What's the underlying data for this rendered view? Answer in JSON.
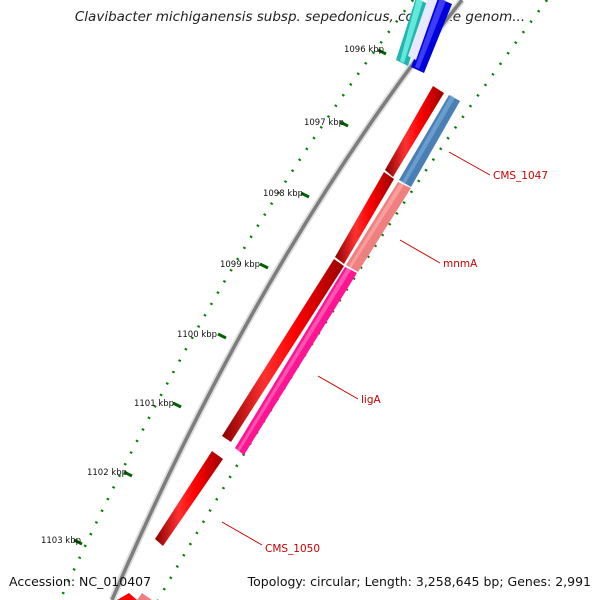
{
  "title": "Clavibacter michiganensis subsp. sepedonicus, complete genom...",
  "footer": {
    "accession": "Accession: NC_010407",
    "topology": "Topology: circular; Length: 3,258,645 bp; Genes: 2,991"
  },
  "ruler": {
    "ticks": [
      {
        "kbp": 1096,
        "label": "1096 kbp"
      },
      {
        "kbp": 1097,
        "label": "1097 kbp"
      },
      {
        "kbp": 1098,
        "label": "1098 kbp"
      },
      {
        "kbp": 1099,
        "label": "1099 kbp"
      },
      {
        "kbp": 1100,
        "label": "1100 kbp"
      },
      {
        "kbp": 1101,
        "label": "1101 kbp"
      },
      {
        "kbp": 1102,
        "label": "1102 kbp"
      },
      {
        "kbp": 1103,
        "label": "1103 kbp"
      }
    ]
  },
  "genes": [
    {
      "name": "CMS_1047",
      "label": "CMS_1047",
      "color": "#4682B4"
    },
    {
      "name": "mnmA",
      "label": "mnmA",
      "color": "#F08080"
    },
    {
      "name": "ligA",
      "label": "ligA",
      "color": "#FF1493"
    },
    {
      "name": "CMS_1050",
      "label": "CMS_1050",
      "color": "#FF0000"
    }
  ],
  "colors": {
    "cds_red": "#FF0000",
    "backbone": "#808080",
    "tick": "#006400",
    "dots": "#008000",
    "cyan_feature": "#20B2AA",
    "blue_feature": "#0000EE",
    "label_text": "#CC0000"
  }
}
